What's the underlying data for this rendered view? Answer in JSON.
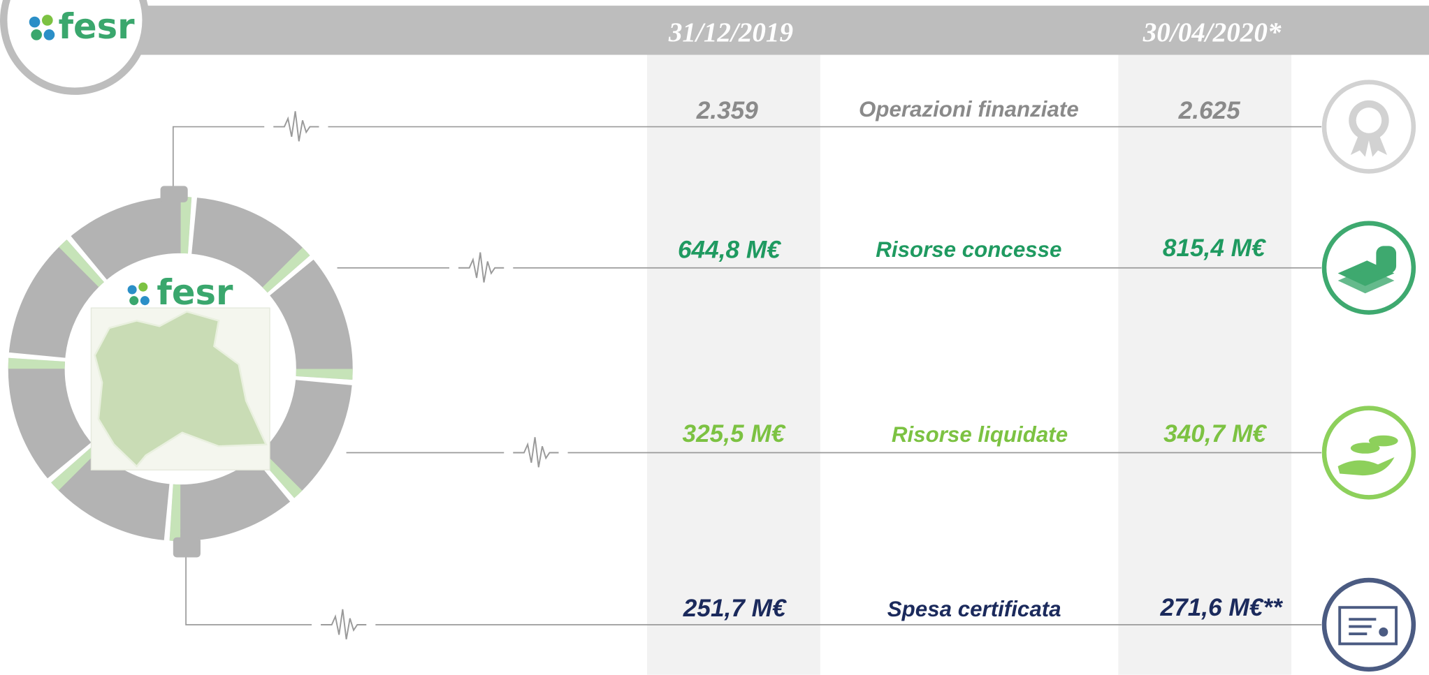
{
  "logo": "fesr",
  "header": {
    "col1": "31/12/2019",
    "col2": "30/04/2020*"
  },
  "rows": [
    {
      "label": "Operazioni finanziate",
      "v2019": "2.359",
      "v2020": "2.625",
      "color": "#8a8a8a",
      "icon_color": "#d2d2d2"
    },
    {
      "label": "Risorse concesse",
      "v2019": "644,8 M€",
      "v2020": "815,4 M€",
      "color": "#1f9a60",
      "icon_color": "#3ea96f"
    },
    {
      "label": "Risorse liquidate",
      "v2019": "325,5 M€",
      "v2020": "340,7 M€",
      "color": "#7cc242",
      "icon_color": "#8dd05b"
    },
    {
      "label": "Spesa certificata",
      "v2019": "251,7 M€",
      "v2020": "271,6 M€**",
      "color": "#1b2a5c",
      "icon_color": "#4b5b82"
    }
  ]
}
